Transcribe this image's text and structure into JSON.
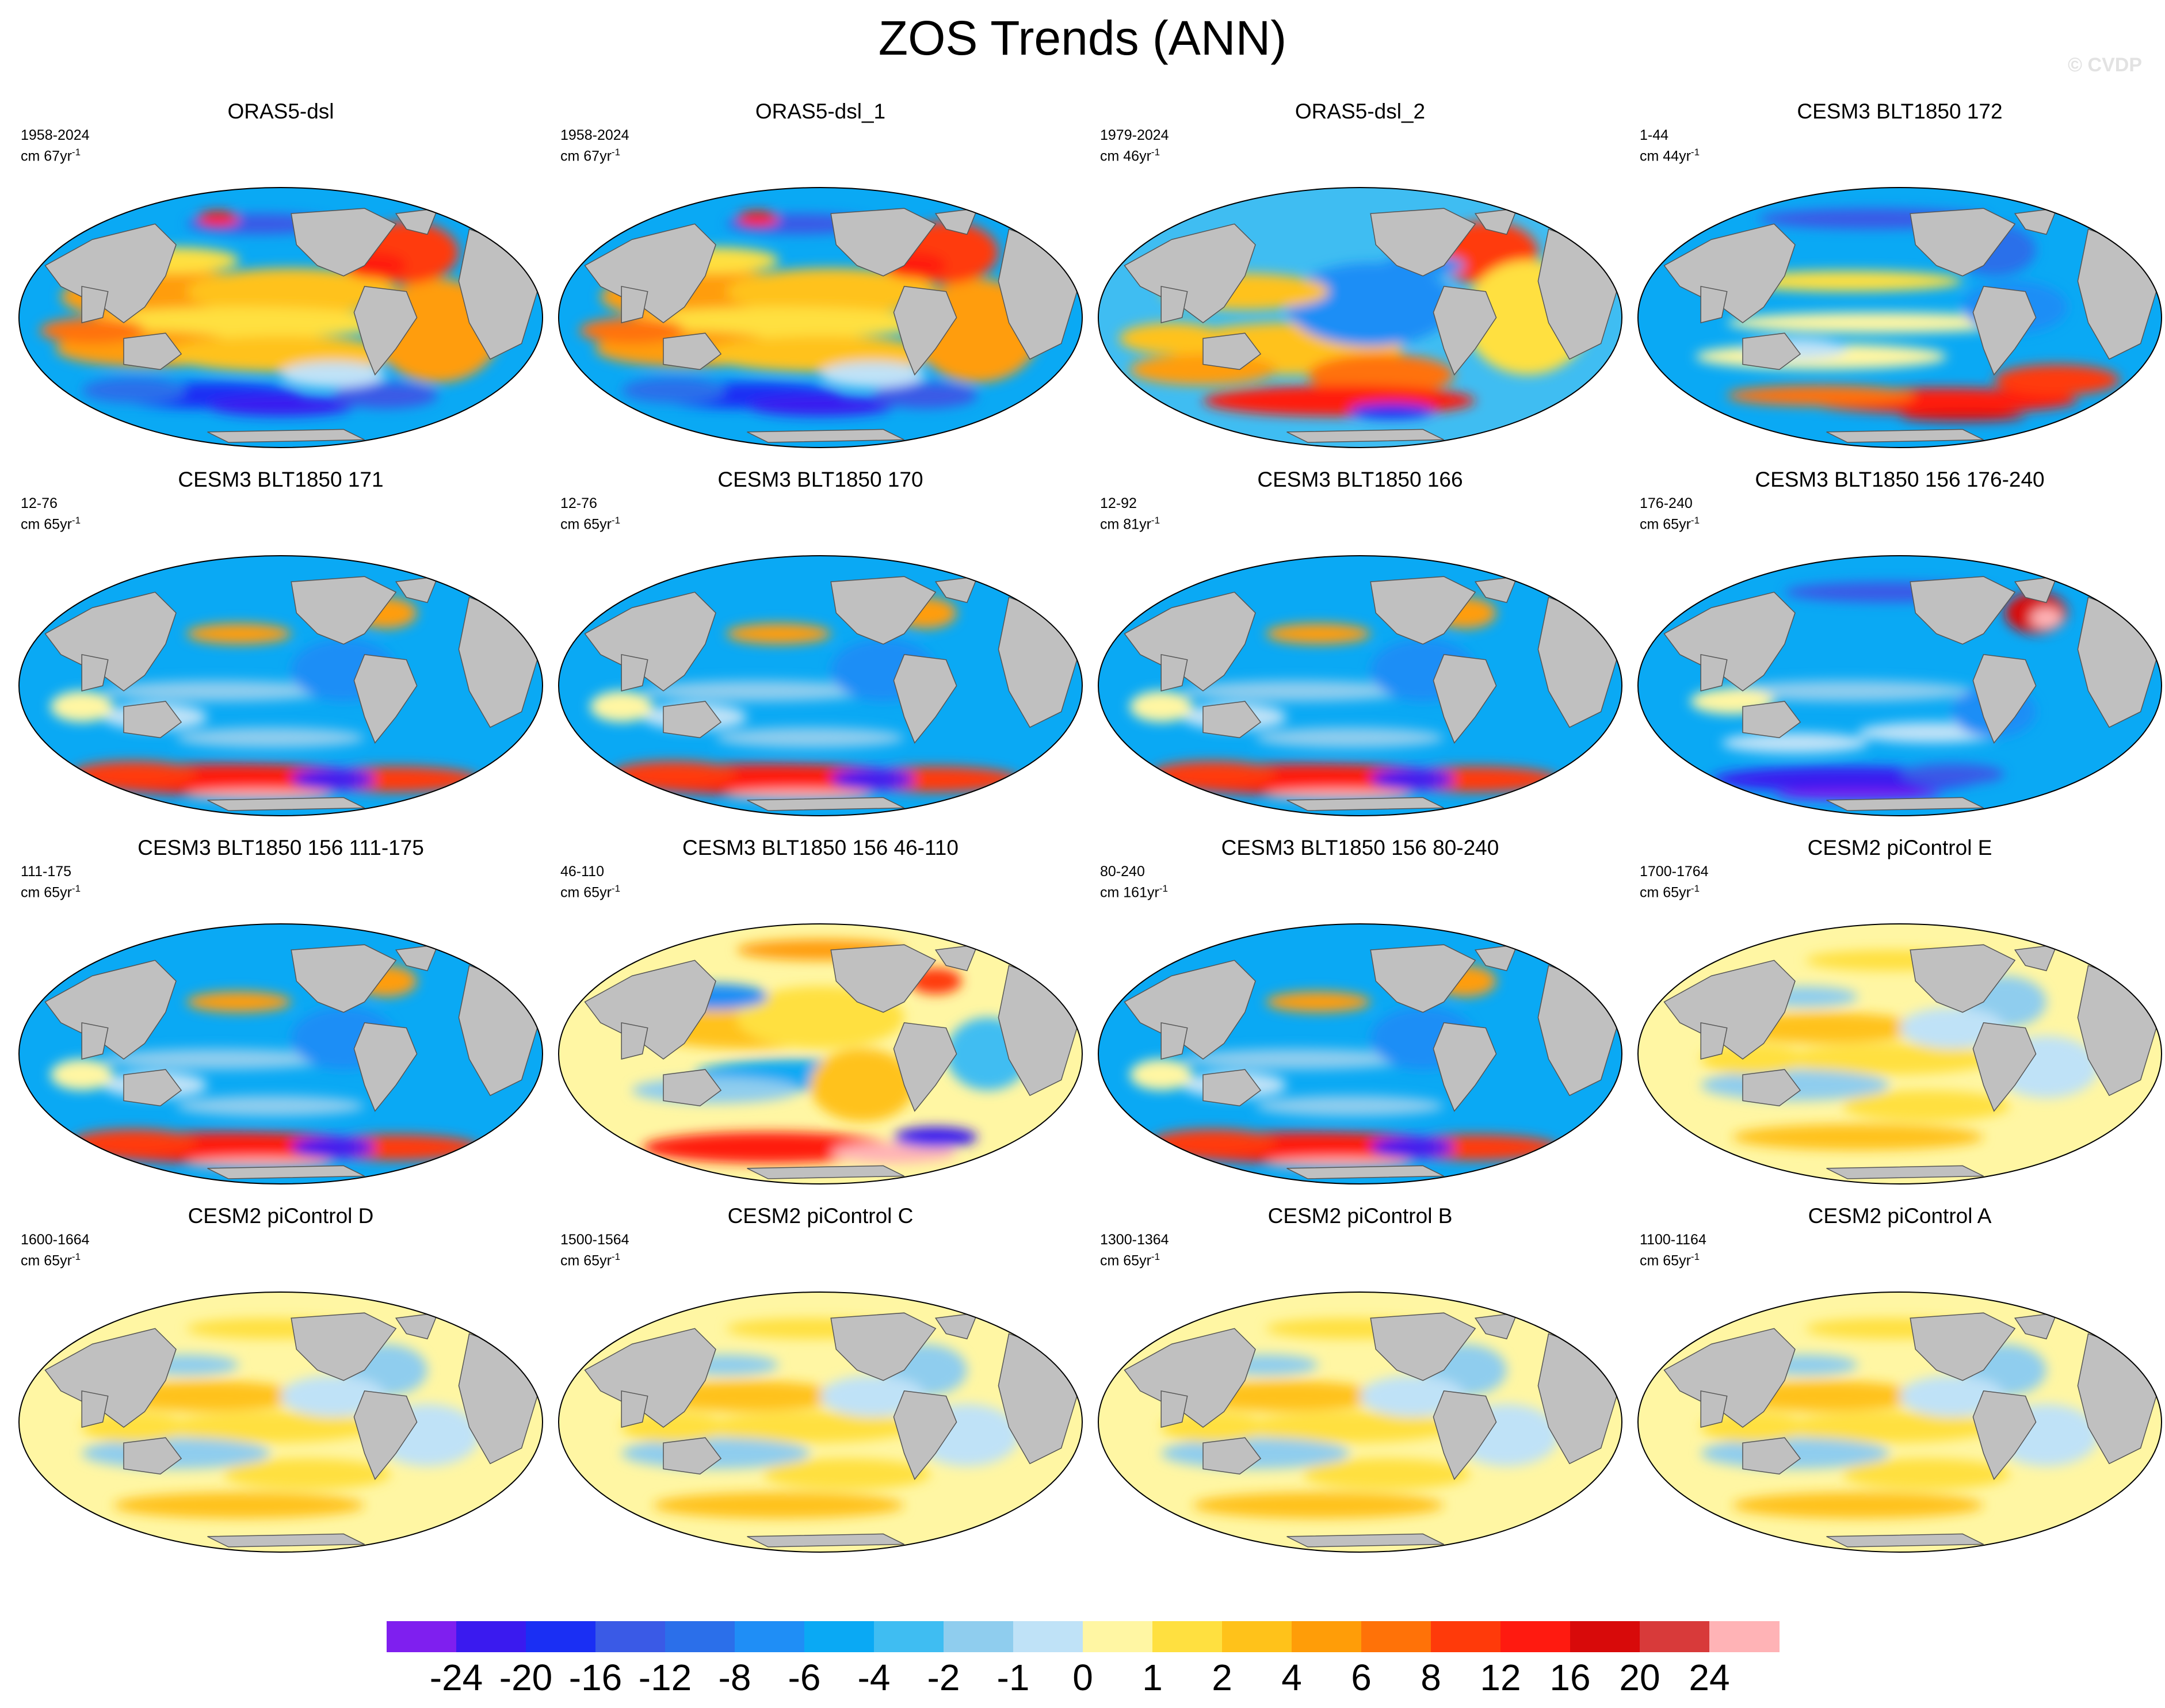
{
  "title": "ZOS Trends (ANN)",
  "watermark": "© CVDP",
  "panels": [
    {
      "title": "ORAS5-dsl",
      "period": "1958-2024",
      "units": "cm 67yr",
      "units_sup": "-1",
      "pattern": "obs1"
    },
    {
      "title": "ORAS5-dsl_1",
      "period": "1958-2024",
      "units": "cm 67yr",
      "units_sup": "-1",
      "pattern": "obs1"
    },
    {
      "title": "ORAS5-dsl_2",
      "period": "1979-2024",
      "units": "cm 46yr",
      "units_sup": "-1",
      "pattern": "obs2"
    },
    {
      "title": "CESM3 BLT1850 172",
      "period": "1-44",
      "units": "cm 44yr",
      "units_sup": "-1",
      "pattern": "blt_a"
    },
    {
      "title": "CESM3 BLT1850 171",
      "period": "12-76",
      "units": "cm 65yr",
      "units_sup": "-1",
      "pattern": "blt_b"
    },
    {
      "title": "CESM3 BLT1850 170",
      "period": "12-76",
      "units": "cm 65yr",
      "units_sup": "-1",
      "pattern": "blt_b"
    },
    {
      "title": "CESM3 BLT1850 166",
      "period": "12-92",
      "units": "cm 81yr",
      "units_sup": "-1",
      "pattern": "blt_b"
    },
    {
      "title": "CESM3 BLT1850 156 176-240",
      "period": "176-240",
      "units": "cm 65yr",
      "units_sup": "-1",
      "pattern": "blt_c"
    },
    {
      "title": "CESM3 BLT1850 156 111-175",
      "period": "111-175",
      "units": "cm 65yr",
      "units_sup": "-1",
      "pattern": "blt_b"
    },
    {
      "title": "CESM3 BLT1850 156 46-110",
      "period": "46-110",
      "units": "cm 65yr",
      "units_sup": "-1",
      "pattern": "blt_d"
    },
    {
      "title": "CESM3 BLT1850 156 80-240",
      "period": "80-240",
      "units": "cm 161yr",
      "units_sup": "-1",
      "pattern": "blt_b"
    },
    {
      "title": "CESM2 piControl E",
      "period": "1700-1764",
      "units": "cm 65yr",
      "units_sup": "-1",
      "pattern": "pic"
    },
    {
      "title": "CESM2 piControl D",
      "period": "1600-1664",
      "units": "cm 65yr",
      "units_sup": "-1",
      "pattern": "pic"
    },
    {
      "title": "CESM2 piControl C",
      "period": "1500-1564",
      "units": "cm 65yr",
      "units_sup": "-1",
      "pattern": "pic"
    },
    {
      "title": "CESM2 piControl B",
      "period": "1300-1364",
      "units": "cm 65yr",
      "units_sup": "-1",
      "pattern": "pic"
    },
    {
      "title": "CESM2 piControl A",
      "period": "1100-1164",
      "units": "cm 65yr",
      "units_sup": "-1",
      "pattern": "pic"
    }
  ],
  "colorbar": {
    "colors": [
      "#7f1fef",
      "#3a1aef",
      "#1a2ff4",
      "#3a5ae6",
      "#2b6fea",
      "#1f8ef6",
      "#0aa9f4",
      "#3fbdf2",
      "#8fcdee",
      "#bfe2f7",
      "#fff6a3",
      "#ffe040",
      "#ffc21a",
      "#ff9d08",
      "#ff7208",
      "#ff3a0a",
      "#ff1a10",
      "#d80a0a",
      "#d83a3a",
      "#ffb3b6"
    ],
    "labels": [
      "-24",
      "-20",
      "-16",
      "-12",
      "-8",
      "-6",
      "-4",
      "-2",
      "-1",
      "0",
      "1",
      "2",
      "4",
      "6",
      "8",
      "12",
      "16",
      "20",
      "24"
    ]
  },
  "land_color": "#c0c0c0",
  "missing_color": "#ffffff"
}
